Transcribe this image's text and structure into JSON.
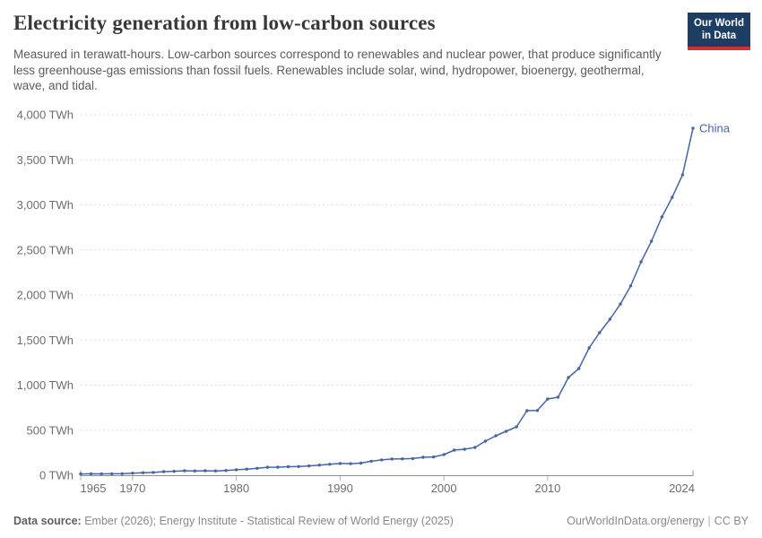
{
  "header": {
    "title": "Electricity generation from low-carbon sources",
    "subtitle": "Measured in terawatt-hours. Low-carbon sources correspond to renewables and nuclear power, that produce significantly less greenhouse-gas emissions than fossil fuels. Renewables include solar, wind, hydropower, bioenergy, geothermal, wave, and tidal.",
    "logo": {
      "line1": "Our World",
      "line2": "in Data"
    }
  },
  "chart_data": {
    "type": "line",
    "title": "Electricity generation from low-carbon sources",
    "unit": "TWh",
    "xlabel": "",
    "ylabel": "",
    "xlim": [
      1965,
      2024
    ],
    "ylim": [
      0,
      4000
    ],
    "x_ticks": [
      1965,
      1970,
      1980,
      1990,
      2000,
      2010,
      2024
    ],
    "y_ticks": [
      0,
      500,
      1000,
      1500,
      2000,
      2500,
      3000,
      3500,
      4000
    ],
    "y_tick_labels": [
      "0 TWh",
      "500 TWh",
      "1,000 TWh",
      "1,500 TWh",
      "2,000 TWh",
      "2,500 TWh",
      "3,000 TWh",
      "3,500 TWh",
      "4,000 TWh"
    ],
    "grid": "horizontal-dashed",
    "legend": "end-of-line-label",
    "series": [
      {
        "name": "China",
        "color": "#4566a4",
        "x": [
          1965,
          1966,
          1967,
          1968,
          1969,
          1970,
          1971,
          1972,
          1973,
          1974,
          1975,
          1976,
          1977,
          1978,
          1979,
          1980,
          1981,
          1982,
          1983,
          1984,
          1985,
          1986,
          1987,
          1988,
          1989,
          1990,
          1991,
          1992,
          1993,
          1994,
          1995,
          1996,
          1997,
          1998,
          1999,
          2000,
          2001,
          2002,
          2003,
          2004,
          2005,
          2006,
          2007,
          2008,
          2009,
          2010,
          2011,
          2012,
          2013,
          2014,
          2015,
          2016,
          2017,
          2018,
          2019,
          2020,
          2021,
          2022,
          2023,
          2024
        ],
        "values": [
          14,
          16,
          15,
          16,
          17,
          23,
          28,
          31,
          40,
          44,
          50,
          48,
          50,
          48,
          53,
          61,
          68,
          77,
          89,
          90,
          95,
          97,
          103,
          112,
          121,
          130,
          128,
          134,
          155,
          170,
          180,
          182,
          185,
          199,
          203,
          229,
          279,
          289,
          308,
          378,
          438,
          488,
          537,
          716,
          718,
          846,
          866,
          1085,
          1184,
          1413,
          1582,
          1731,
          1900,
          2100,
          2368,
          2597,
          2866,
          3084,
          3333,
          3850
        ]
      }
    ]
  },
  "footer": {
    "source_label": "Data source:",
    "source_text": "Ember (2026); Energy Institute - Statistical Review of World Energy (2025)",
    "site_text": "OurWorldInData.org/energy",
    "separator": "|",
    "license_text": "CC BY"
  },
  "colors": {
    "line": "#4566a4",
    "grid": "#dedede",
    "axis": "#8f8f8f",
    "tick": "#b0b0b0",
    "tick_label": "#6d6d6d",
    "logo_navy": "#1d3d63",
    "logo_red": "#cc3333"
  }
}
